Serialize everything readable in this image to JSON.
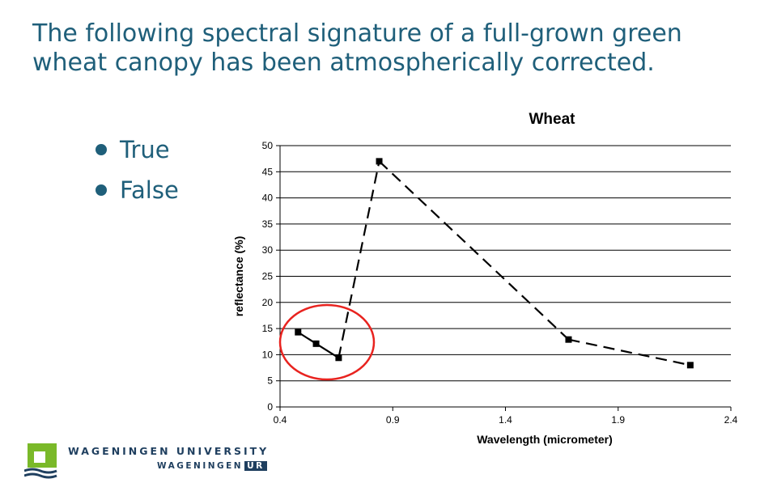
{
  "slide": {
    "title": "The following spectral signature of a full-grown green wheat canopy has been atmospherically corrected."
  },
  "options": [
    {
      "label": "True"
    },
    {
      "label": "False"
    }
  ],
  "logo": {
    "line1": "WAGENINGEN UNIVERSITY",
    "line2": "WAGENINGEN",
    "badge": "UR"
  },
  "colors": {
    "title": "#1f5f7a",
    "highlight_circle": "#e8231f",
    "logo_green": "#7ab929",
    "logo_blue": "#1f3f5f"
  },
  "chart_data": {
    "type": "line",
    "title": "Wheat",
    "xlabel": "Wavelength (micrometer)",
    "ylabel": "reflectance (%)",
    "xlim": [
      0.4,
      2.4
    ],
    "ylim": [
      0,
      50
    ],
    "xticks": [
      "0.4",
      "0.9",
      "1.4",
      "1.9",
      "2.4"
    ],
    "yticks": [
      "0",
      "5",
      "10",
      "15",
      "20",
      "25",
      "30",
      "35",
      "40",
      "45",
      "50"
    ],
    "grid": "horizontal",
    "series": [
      {
        "x": [
          0.48,
          0.56,
          0.66,
          0.84,
          1.68,
          2.22
        ],
        "y": [
          14.3,
          12.1,
          9.4,
          47.0,
          12.9,
          8.0
        ],
        "solid_segments": [
          [
            0,
            2
          ]
        ],
        "dashed_segments": [
          [
            2,
            5
          ]
        ]
      }
    ],
    "annotation": "circle-around-visible-range"
  }
}
